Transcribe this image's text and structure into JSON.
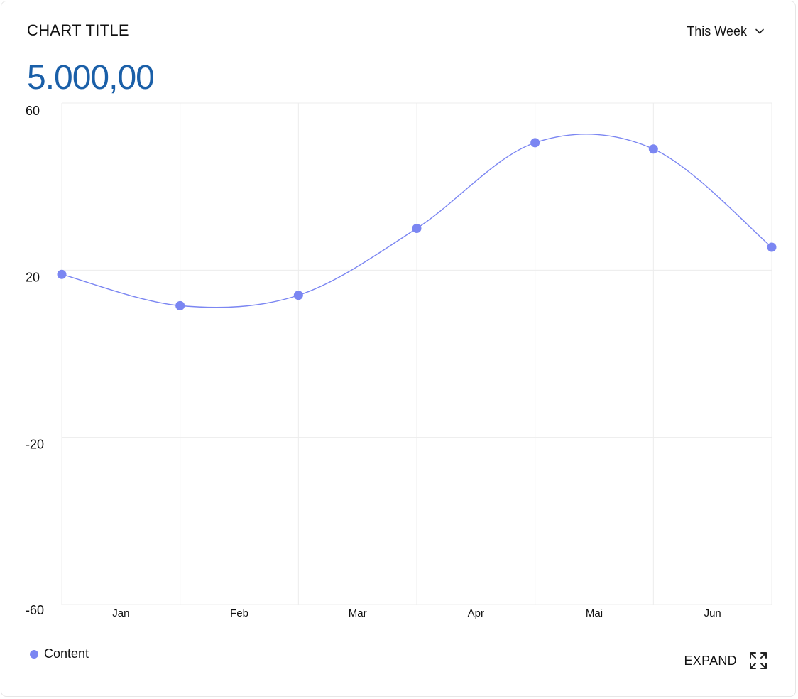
{
  "header": {
    "title": "CHART TITLE",
    "period_label": "This Week",
    "period_icon": "chevron-down-icon",
    "value": "5.000,00"
  },
  "legend": {
    "label": "Content"
  },
  "footer": {
    "expand_label": "EXPAND",
    "expand_icon": "expand-arrows-icon"
  },
  "colors": {
    "series": "#7b86f2",
    "value": "#1a5fa8",
    "grid": "#ececec"
  },
  "chart_data": {
    "type": "line",
    "categories": [
      "Jan",
      "Feb",
      "Mar",
      "Apr",
      "Mai",
      "Jun"
    ],
    "yticks": [
      60,
      20,
      -20,
      -60
    ],
    "ylim": [
      -60,
      60
    ],
    "series": [
      {
        "name": "Content",
        "x": [
          0,
          1,
          2,
          3,
          4,
          5,
          6
        ],
        "values": [
          19,
          11.5,
          14,
          30,
          50.5,
          49,
          25.5
        ]
      }
    ],
    "smooth": true,
    "grid": true,
    "legend": "bottom-left"
  }
}
